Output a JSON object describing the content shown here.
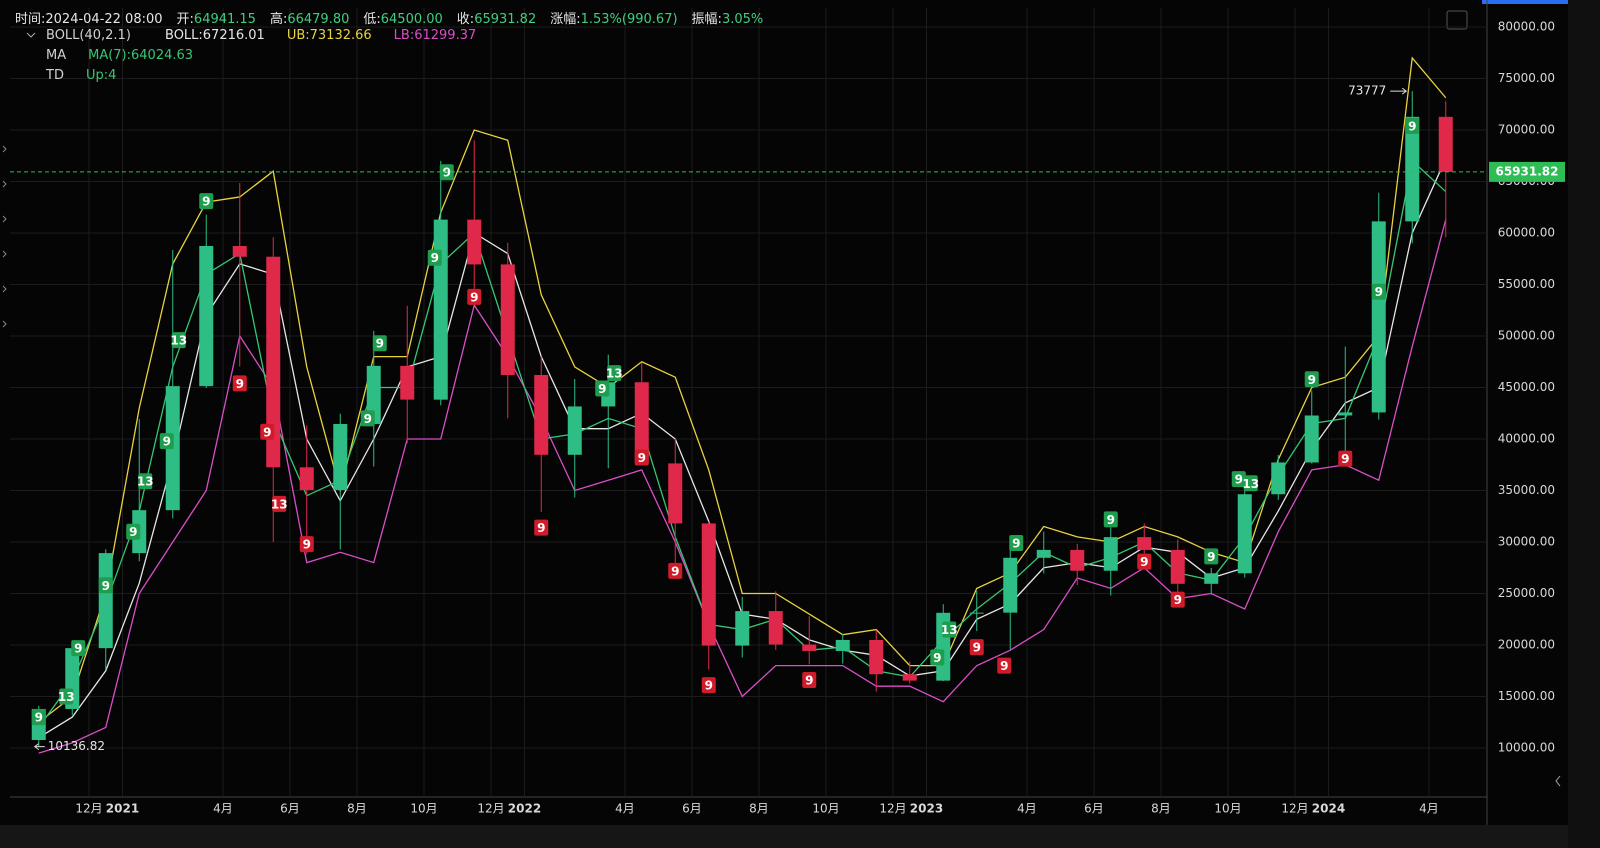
{
  "chart_data": {
    "type": "candlestick",
    "header": {
      "time": "时间:2024-04-22 08:00",
      "fields": [
        {
          "label": "开:",
          "value": "64941.15"
        },
        {
          "label": "高:",
          "value": "66479.80"
        },
        {
          "label": "低:",
          "value": "64500.00"
        },
        {
          "label": "收:",
          "value": "65931.82"
        },
        {
          "label": "涨幅:",
          "value": "1.53%(990.67)"
        },
        {
          "label": "振幅:",
          "value": "3.05%"
        }
      ]
    },
    "legend_rows": [
      {
        "name": "BOLL(40,2.1)",
        "items": [
          {
            "text": "BOLL:67216.01",
            "color": "#e6e6e6"
          },
          {
            "text": "UB:73132.66",
            "color": "#e8d33f"
          },
          {
            "text": "LB:61299.37",
            "color": "#d94fc8"
          }
        ]
      },
      {
        "name": "MA",
        "items": [
          {
            "text": "MA(7):64024.63",
            "color": "#35c774"
          }
        ]
      },
      {
        "name": "TD",
        "items": [
          {
            "text": "Up:4",
            "color": "#35c774"
          }
        ]
      }
    ],
    "categories": [
      "2020-10",
      "2020-11",
      "2020-12",
      "2021-01",
      "2021-02",
      "2021-03",
      "2021-04",
      "2021-05",
      "2021-06",
      "2021-07",
      "2021-08",
      "2021-09",
      "2021-10",
      "2021-11",
      "2021-12",
      "2022-01",
      "2022-02",
      "2022-03",
      "2022-04",
      "2022-05",
      "2022-06",
      "2022-07",
      "2022-08",
      "2022-09",
      "2022-10",
      "2022-11",
      "2022-12",
      "2023-01",
      "2023-02",
      "2023-03",
      "2023-04",
      "2023-05",
      "2023-06",
      "2023-07",
      "2023-08",
      "2023-09",
      "2023-10",
      "2023-11",
      "2023-12",
      "2024-01",
      "2024-02",
      "2024-03",
      "2024-04"
    ],
    "open": [
      10777,
      13791,
      19695,
      28923,
      33092,
      45134,
      58739,
      57697,
      37253,
      35045,
      41461,
      47100,
      43820,
      61300,
      56950,
      46216,
      38466,
      43160,
      45510,
      37630,
      31801,
      19942,
      23296,
      20048,
      19422,
      20490,
      17165,
      16541,
      23125,
      23141,
      28465,
      29233,
      27210,
      30471,
      29232,
      25940,
      26962,
      34639,
      37723,
      42283,
      42580,
      61130,
      71280
    ],
    "high": [
      14100,
      19863,
      29300,
      41950,
      58352,
      61788,
      64854,
      59595,
      41330,
      42448,
      50500,
      52920,
      67000,
      69000,
      59053,
      47990,
      45821,
      48189,
      47444,
      40023,
      31986,
      24668,
      25211,
      22799,
      21085,
      21480,
      18387,
      23960,
      25250,
      29184,
      31000,
      29820,
      31431,
      31804,
      30244,
      27483,
      35198,
      38450,
      44700,
      48969,
      63913,
      73777,
      72797
    ],
    "low": [
      10136.82,
      13195,
      17572,
      28130,
      32296,
      44950,
      47044,
      30000,
      28805,
      29278,
      37332,
      39600,
      43283,
      53256,
      42000,
      32917,
      34322,
      37155,
      37578,
      26700,
      17622,
      18782,
      19520,
      18125,
      18190,
      15476,
      16256,
      16499,
      21351,
      19549,
      26942,
      25811,
      24800,
      28861,
      25166,
      24901,
      26538,
      34097,
      37615,
      38555,
      41884,
      59005,
      59600
    ],
    "close": [
      13791,
      19695,
      28923,
      33092,
      45135,
      58740,
      57694,
      37253,
      35045,
      41461,
      47100,
      43824,
      61299,
      56950,
      46216,
      38466,
      43160,
      45510,
      37630,
      31801,
      19942,
      23293,
      20050,
      19423,
      20490,
      17164,
      16542,
      23125,
      23141,
      28465,
      29233,
      27210,
      30472,
      29232,
      25940,
      26962,
      34639,
      37723,
      42283,
      42582,
      61130,
      71280,
      65931.82
    ],
    "up_color": "#2ebd85",
    "down_color": "#e0294a",
    "lines": [
      {
        "color": "#e8d33f",
        "values": [
          12500,
          15000,
          25000,
          43000,
          57000,
          63000,
          63500,
          66000,
          47000,
          35000,
          48000,
          48000,
          62000,
          70000,
          69000,
          54000,
          47000,
          45000,
          47500,
          46000,
          37000,
          25000,
          25000,
          23000,
          21000,
          21500,
          18000,
          18000,
          25500,
          27000,
          31500,
          30500,
          30000,
          31500,
          30500,
          29000,
          28000,
          38000,
          45000,
          46000,
          50000,
          77000,
          73132.66
        ]
      },
      {
        "color": "#e6e6e6",
        "values": [
          11000,
          13000,
          17500,
          26000,
          38000,
          52000,
          57000,
          56000,
          40000,
          34000,
          40000,
          47000,
          48000,
          60000,
          58000,
          48000,
          41000,
          41000,
          42500,
          40000,
          32000,
          23000,
          22500,
          20500,
          19500,
          19000,
          17000,
          17500,
          22500,
          24000,
          27500,
          28000,
          27500,
          29500,
          29000,
          26500,
          27500,
          33000,
          39000,
          43500,
          45000,
          60000,
          67216.01
        ]
      },
      {
        "color": "#d94fc8",
        "values": [
          9500,
          10500,
          12000,
          25000,
          30000,
          35000,
          50000,
          45000,
          28000,
          29000,
          28000,
          40000,
          40000,
          53000,
          48000,
          42000,
          35000,
          36000,
          37000,
          30000,
          22000,
          15000,
          18000,
          18000,
          18000,
          16000,
          16000,
          14500,
          18000,
          19500,
          21500,
          26500,
          25500,
          27500,
          24500,
          25000,
          23500,
          31000,
          37000,
          37500,
          36000,
          49000,
          61299.37
        ]
      },
      {
        "color": "#35c774",
        "values": [
          12000,
          16500,
          24000,
          33000,
          47000,
          56000,
          58000,
          42000,
          34500,
          36000,
          45000,
          45000,
          57000,
          60000,
          50000,
          40000,
          40500,
          42000,
          41000,
          30500,
          22000,
          21500,
          22500,
          19500,
          19800,
          17500,
          16900,
          20500,
          23500,
          26000,
          29000,
          27500,
          28500,
          30000,
          27000,
          26300,
          30500,
          36500,
          41500,
          42000,
          50000,
          67000,
          64024.63
        ]
      }
    ],
    "td_markers": [
      {
        "x": "2020-10",
        "y": 13000,
        "label": "9",
        "side": "up"
      },
      {
        "x": "2020-11",
        "y": 15000,
        "label": "13",
        "side": "up"
      },
      {
        "x": "2020-11",
        "y": 19700,
        "label": "9",
        "side": "up"
      },
      {
        "x": "2020-12",
        "y": 25800,
        "label": "9",
        "side": "up"
      },
      {
        "x": "2021-01",
        "y": 31000,
        "label": "9",
        "side": "up"
      },
      {
        "x": "2021-01",
        "y": 35900,
        "label": "13",
        "side": "up"
      },
      {
        "x": "2021-02",
        "y": 39800,
        "label": "9",
        "side": "up"
      },
      {
        "x": "2021-02",
        "y": 49600,
        "label": "13",
        "side": "up"
      },
      {
        "x": "2021-03",
        "y": 63100,
        "label": "9",
        "side": "up"
      },
      {
        "x": "2021-04",
        "y": 45400,
        "label": "9",
        "side": "down"
      },
      {
        "x": "2021-05",
        "y": 40700,
        "label": "9",
        "side": "down"
      },
      {
        "x": "2021-05",
        "y": 33700,
        "label": "13",
        "side": "down"
      },
      {
        "x": "2021-06",
        "y": 29800,
        "label": "9",
        "side": "down"
      },
      {
        "x": "2021-08",
        "y": 42000,
        "label": "9",
        "side": "up"
      },
      {
        "x": "2021-08",
        "y": 49300,
        "label": "9",
        "side": "up"
      },
      {
        "x": "2021-10",
        "y": 57600,
        "label": "9",
        "side": "up"
      },
      {
        "x": "2021-10",
        "y": 65900,
        "label": "9",
        "side": "up"
      },
      {
        "x": "2021-11",
        "y": 53800,
        "label": "9",
        "side": "down"
      },
      {
        "x": "2022-01",
        "y": 31400,
        "label": "9",
        "side": "down"
      },
      {
        "x": "2022-03",
        "y": 44900,
        "label": "9",
        "side": "up"
      },
      {
        "x": "2022-03",
        "y": 46400,
        "label": "13",
        "side": "up"
      },
      {
        "x": "2022-04",
        "y": 38200,
        "label": "9",
        "side": "down"
      },
      {
        "x": "2022-05",
        "y": 27200,
        "label": "9",
        "side": "down"
      },
      {
        "x": "2022-06",
        "y": 16100,
        "label": "9",
        "side": "down"
      },
      {
        "x": "2022-09",
        "y": 16600,
        "label": "9",
        "side": "down"
      },
      {
        "x": "2023-01",
        "y": 18800,
        "label": "9",
        "side": "up"
      },
      {
        "x": "2023-01",
        "y": 21500,
        "label": "13",
        "side": "up"
      },
      {
        "x": "2023-02",
        "y": 19800,
        "label": "9",
        "side": "down"
      },
      {
        "x": "2023-03",
        "y": 18000,
        "label": "9",
        "side": "down"
      },
      {
        "x": "2023-03",
        "y": 29900,
        "label": "9",
        "side": "up"
      },
      {
        "x": "2023-06",
        "y": 32200,
        "label": "9",
        "side": "up"
      },
      {
        "x": "2023-07",
        "y": 28100,
        "label": "9",
        "side": "down"
      },
      {
        "x": "2023-08",
        "y": 24400,
        "label": "9",
        "side": "down"
      },
      {
        "x": "2023-09",
        "y": 28600,
        "label": "9",
        "side": "up"
      },
      {
        "x": "2023-10",
        "y": 36100,
        "label": "9",
        "side": "up"
      },
      {
        "x": "2023-10",
        "y": 35700,
        "label": "13",
        "side": "up"
      },
      {
        "x": "2023-12",
        "y": 45800,
        "label": "9",
        "side": "up"
      },
      {
        "x": "2024-01",
        "y": 38100,
        "label": "9",
        "side": "down"
      },
      {
        "x": "2024-02",
        "y": 54300,
        "label": "9",
        "side": "up"
      },
      {
        "x": "2024-03",
        "y": 70400,
        "label": "9",
        "side": "up"
      }
    ],
    "annotations": [
      {
        "value": 73777,
        "x": "2024-03",
        "side": "left"
      },
      {
        "value": 10136.82,
        "x": "2020-10",
        "side": "right"
      }
    ],
    "last_price": 65931.82,
    "last_price_color": "#2ebd55",
    "ylim": [
      5243,
      81845
    ],
    "yticks": [
      {
        "value": 10000,
        "label": "10000.00"
      },
      {
        "value": 15000,
        "label": "15000.00"
      },
      {
        "value": 20000,
        "label": "20000.00"
      },
      {
        "value": 25000,
        "label": "25000.00"
      },
      {
        "value": 30000,
        "label": "30000.00"
      },
      {
        "value": 35000,
        "label": "35000.00"
      },
      {
        "value": 40000,
        "label": "40000.00"
      },
      {
        "value": 45000,
        "label": "45000.00"
      },
      {
        "value": 50000,
        "label": "50000.00"
      },
      {
        "value": 55000,
        "label": "55000.00"
      },
      {
        "value": 60000,
        "label": "60000.00"
      },
      {
        "value": 65000,
        "label": "65000.00"
      },
      {
        "value": 70000,
        "label": "70000.00"
      },
      {
        "value": 75000,
        "label": "75000.00"
      },
      {
        "value": 80000,
        "label": "80000.00"
      }
    ],
    "xticks": [
      {
        "value": "2020-12",
        "label": "12月"
      },
      {
        "value": "2021-01",
        "label": "2021"
      },
      {
        "value": "2021-04",
        "label": "4月"
      },
      {
        "value": "2021-06",
        "label": "6月"
      },
      {
        "value": "2021-08",
        "label": "8月"
      },
      {
        "value": "2021-10",
        "label": "10月"
      },
      {
        "value": "2021-12",
        "label": "12月"
      },
      {
        "value": "2022-01",
        "label": "2022"
      },
      {
        "value": "2022-04",
        "label": "4月"
      },
      {
        "value": "2022-06",
        "label": "6月"
      },
      {
        "value": "2022-08",
        "label": "8月"
      },
      {
        "value": "2022-10",
        "label": "10月"
      },
      {
        "value": "2022-12",
        "label": "12月"
      },
      {
        "value": "2023-01",
        "label": "2023"
      },
      {
        "value": "2023-04",
        "label": "4月"
      },
      {
        "value": "2023-06",
        "label": "6月"
      },
      {
        "value": "2023-08",
        "label": "8月"
      },
      {
        "value": "2023-10",
        "label": "10月"
      },
      {
        "value": "2023-12",
        "label": "12月"
      },
      {
        "value": "2024-01",
        "label": "2024"
      },
      {
        "value": "2024-04",
        "label": "4月"
      }
    ],
    "grid": true
  }
}
